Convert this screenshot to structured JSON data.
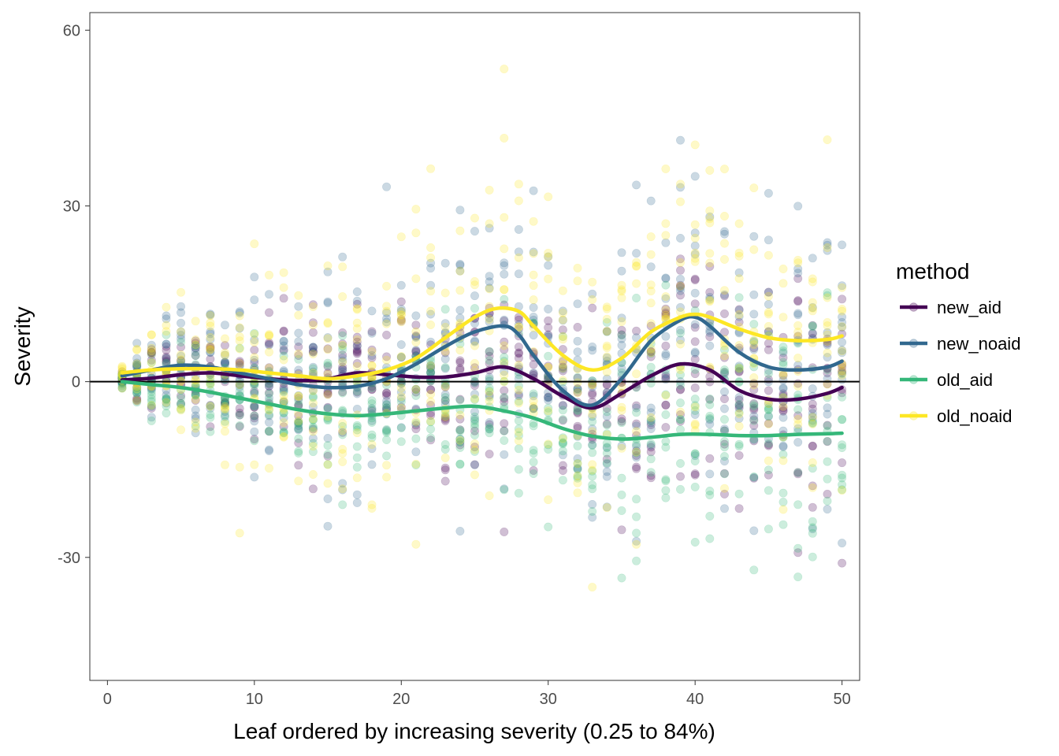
{
  "chart_data": {
    "type": "scatter",
    "xlabel": "Leaf ordered by increasing severity (0.25 to 84%)",
    "ylabel": "Severity",
    "xlim": [
      -1.2,
      51.2
    ],
    "ylim": [
      -51,
      63
    ],
    "x_ticks": [
      0,
      10,
      20,
      30,
      40,
      50
    ],
    "y_ticks": [
      -30,
      0,
      30,
      60
    ],
    "x_tick_labels": [
      "0",
      "10",
      "20",
      "30",
      "40",
      "50"
    ],
    "y_tick_labels": [
      "-30",
      "0",
      "30",
      "60"
    ],
    "hline": 0,
    "grid": false,
    "legend": {
      "title": "method",
      "placement": "right",
      "entries": [
        "new_aid",
        "new_noaid",
        "old_aid",
        "old_noaid"
      ]
    },
    "colors": {
      "new_aid": "#440154",
      "new_noaid": "#31688E",
      "old_aid": "#35B779",
      "old_noaid": "#FDE725"
    },
    "point_opacity": 0.25,
    "series": [
      {
        "name": "new_aid",
        "color": "#440154",
        "smooth_x": [
          1,
          3,
          5,
          7,
          9,
          11,
          13,
          15,
          17,
          19,
          21,
          23,
          25,
          27,
          29,
          31,
          33,
          35,
          37,
          39,
          41,
          43,
          45,
          47,
          49,
          50
        ],
        "smooth_y": [
          0.3,
          0.6,
          1.2,
          1.5,
          1.0,
          0.5,
          0.2,
          0.5,
          1.5,
          1.2,
          0.8,
          0.8,
          1.5,
          2.5,
          0.5,
          -2.5,
          -4.5,
          -2.0,
          1.0,
          3.0,
          2.0,
          -1.5,
          -3.0,
          -3.0,
          -2.0,
          -1.0
        ],
        "point_sd": [
          1,
          3,
          4,
          4,
          5,
          5,
          5,
          6,
          6,
          6,
          6,
          7,
          7,
          7,
          7,
          7,
          8,
          8,
          9,
          10,
          10,
          10,
          10,
          10,
          10,
          10
        ]
      },
      {
        "name": "new_noaid",
        "color": "#31688E",
        "smooth_x": [
          1,
          3,
          5,
          7,
          9,
          11,
          13,
          15,
          17,
          19,
          21,
          23,
          25,
          27,
          28,
          29,
          31,
          33,
          35,
          37,
          39,
          40,
          41,
          43,
          45,
          47,
          49,
          50
        ],
        "smooth_y": [
          1.0,
          2.0,
          2.8,
          2.5,
          1.5,
          0.5,
          -0.5,
          -1.0,
          -0.8,
          0.5,
          3.0,
          6.0,
          8.5,
          9.5,
          8.0,
          4.5,
          -1.5,
          -4.0,
          0.5,
          7.0,
          10.5,
          11.0,
          9.5,
          5.0,
          2.5,
          2.0,
          2.5,
          3.5
        ],
        "point_sd": [
          1,
          4,
          6,
          6,
          7,
          8,
          8,
          9,
          10,
          10,
          10,
          11,
          12,
          12,
          12,
          12,
          12,
          12,
          12,
          13,
          13,
          13,
          13,
          13,
          13,
          13,
          13,
          13
        ]
      },
      {
        "name": "old_aid",
        "color": "#35B779",
        "smooth_x": [
          1,
          3,
          5,
          7,
          9,
          11,
          13,
          15,
          17,
          19,
          21,
          23,
          25,
          27,
          29,
          31,
          33,
          35,
          37,
          39,
          41,
          43,
          45,
          47,
          49,
          50
        ],
        "smooth_y": [
          0.0,
          -0.5,
          -1.0,
          -1.8,
          -2.8,
          -3.8,
          -4.8,
          -5.5,
          -5.8,
          -5.5,
          -5.0,
          -4.5,
          -4.2,
          -5.0,
          -6.2,
          -8.0,
          -9.3,
          -9.8,
          -9.5,
          -9.0,
          -9.0,
          -9.2,
          -9.2,
          -9.0,
          -8.9,
          -8.8
        ],
        "point_sd": [
          1,
          3,
          4,
          4,
          5,
          5,
          5,
          6,
          6,
          6,
          6,
          7,
          7,
          8,
          8,
          9,
          10,
          11,
          11,
          11,
          11,
          11,
          11,
          11,
          11,
          11
        ]
      },
      {
        "name": "old_noaid",
        "color": "#FDE725",
        "smooth_x": [
          1,
          3,
          5,
          7,
          9,
          11,
          13,
          15,
          17,
          19,
          21,
          23,
          25,
          26.5,
          28,
          29,
          31,
          33,
          35,
          37,
          39,
          40,
          41,
          43,
          45,
          47,
          49,
          50
        ],
        "smooth_y": [
          1.5,
          2.0,
          2.2,
          2.2,
          2.0,
          1.5,
          1.0,
          0.5,
          1.0,
          2.0,
          4.0,
          7.5,
          11.0,
          12.5,
          12.0,
          9.5,
          4.5,
          2.0,
          4.0,
          8.5,
          11.0,
          11.5,
          11.0,
          9.0,
          7.5,
          7.0,
          7.2,
          7.8
        ],
        "point_sd": [
          1,
          4,
          6,
          7,
          8,
          8,
          9,
          10,
          11,
          11,
          12,
          13,
          13,
          13,
          13,
          13,
          13,
          13,
          13,
          13,
          13,
          13,
          13,
          13,
          13,
          13,
          13,
          13
        ]
      }
    ]
  }
}
